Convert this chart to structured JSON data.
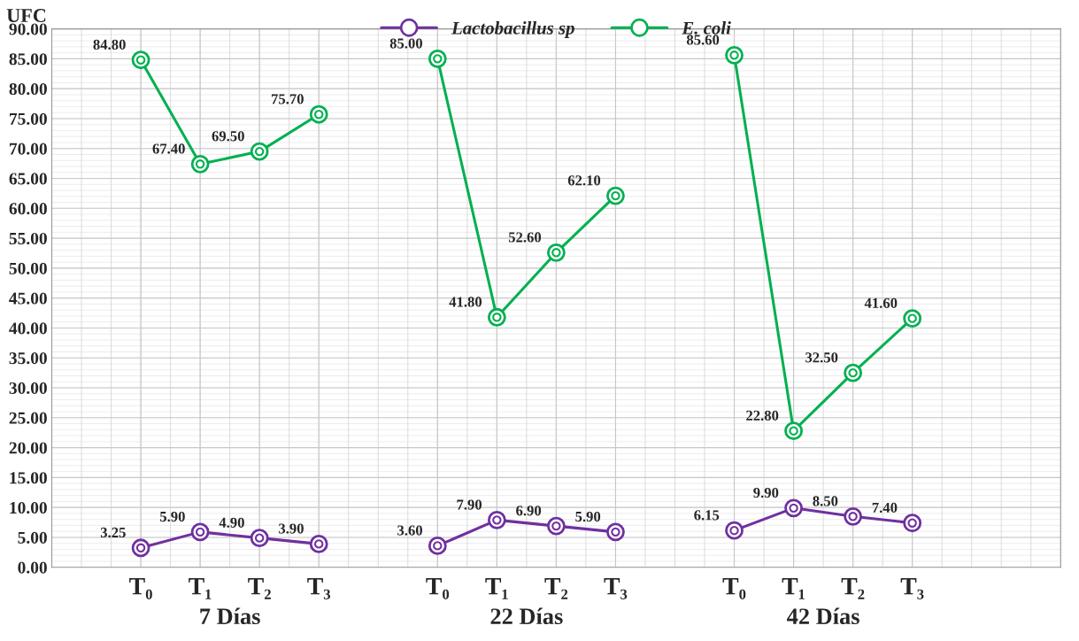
{
  "chart_data": {
    "type": "line",
    "ylabel": "UFC",
    "categories": [
      null,
      "T₀",
      "T₁",
      "T₂",
      "T₃",
      null,
      "T₀",
      "T₁",
      "T₂",
      "T₃",
      null,
      "T₀",
      "T₁",
      "T₂",
      "T₃",
      null,
      null
    ],
    "annotations": [
      "7 Días",
      "22 Días",
      "42 Días"
    ],
    "series": [
      {
        "name": "Lactobacillus sp",
        "color": "#7030a0",
        "values": [
          null,
          3.25,
          5.9,
          4.9,
          3.9,
          null,
          3.6,
          7.9,
          6.9,
          5.9,
          null,
          6.15,
          9.9,
          8.5,
          7.4,
          null,
          null
        ],
        "value_labels": [
          null,
          "3.25",
          "5.90",
          "4.90",
          "3.90",
          null,
          "3.60",
          "7.90",
          "6.90",
          "5.90",
          null,
          "6.15",
          "9.90",
          "8.50",
          "7.40",
          null,
          null
        ]
      },
      {
        "name": "E. coli",
        "color": "#00b050",
        "values": [
          null,
          84.8,
          67.4,
          69.5,
          75.7,
          null,
          85.0,
          41.8,
          52.6,
          62.1,
          null,
          85.6,
          22.8,
          32.5,
          41.6,
          null,
          null
        ],
        "value_labels": [
          null,
          "84.80",
          "67.40",
          "69.50",
          "75.70",
          null,
          "85.00",
          "41.80",
          "52.60",
          "62.10",
          null,
          "85.60",
          "22.80",
          "32.50",
          "41.60",
          null,
          null
        ]
      }
    ],
    "ylim": [
      0,
      90
    ],
    "yticks": [
      {
        "value": 0,
        "label": "0.00"
      },
      {
        "value": 5,
        "label": "5.00"
      },
      {
        "value": 10,
        "label": "10.00"
      },
      {
        "value": 15,
        "label": "15.00"
      },
      {
        "value": 20,
        "label": "20.00"
      },
      {
        "value": 25,
        "label": "25.00"
      },
      {
        "value": 30,
        "label": "30.00"
      },
      {
        "value": 35,
        "label": "35.00"
      },
      {
        "value": 40,
        "label": "40.00"
      },
      {
        "value": 45,
        "label": "45.00"
      },
      {
        "value": 50,
        "label": "50.00"
      },
      {
        "value": 55,
        "label": "55.00"
      },
      {
        "value": 60,
        "label": "60.00"
      },
      {
        "value": 65,
        "label": "65.00"
      },
      {
        "value": 70,
        "label": "70.00"
      },
      {
        "value": 75,
        "label": "75.00"
      },
      {
        "value": 80,
        "label": "80.00"
      },
      {
        "value": 85,
        "label": "85.00"
      },
      {
        "value": 90,
        "label": "90.00"
      }
    ],
    "grid": true,
    "legend": "top",
    "marker": "circle",
    "line_style": "solid"
  }
}
